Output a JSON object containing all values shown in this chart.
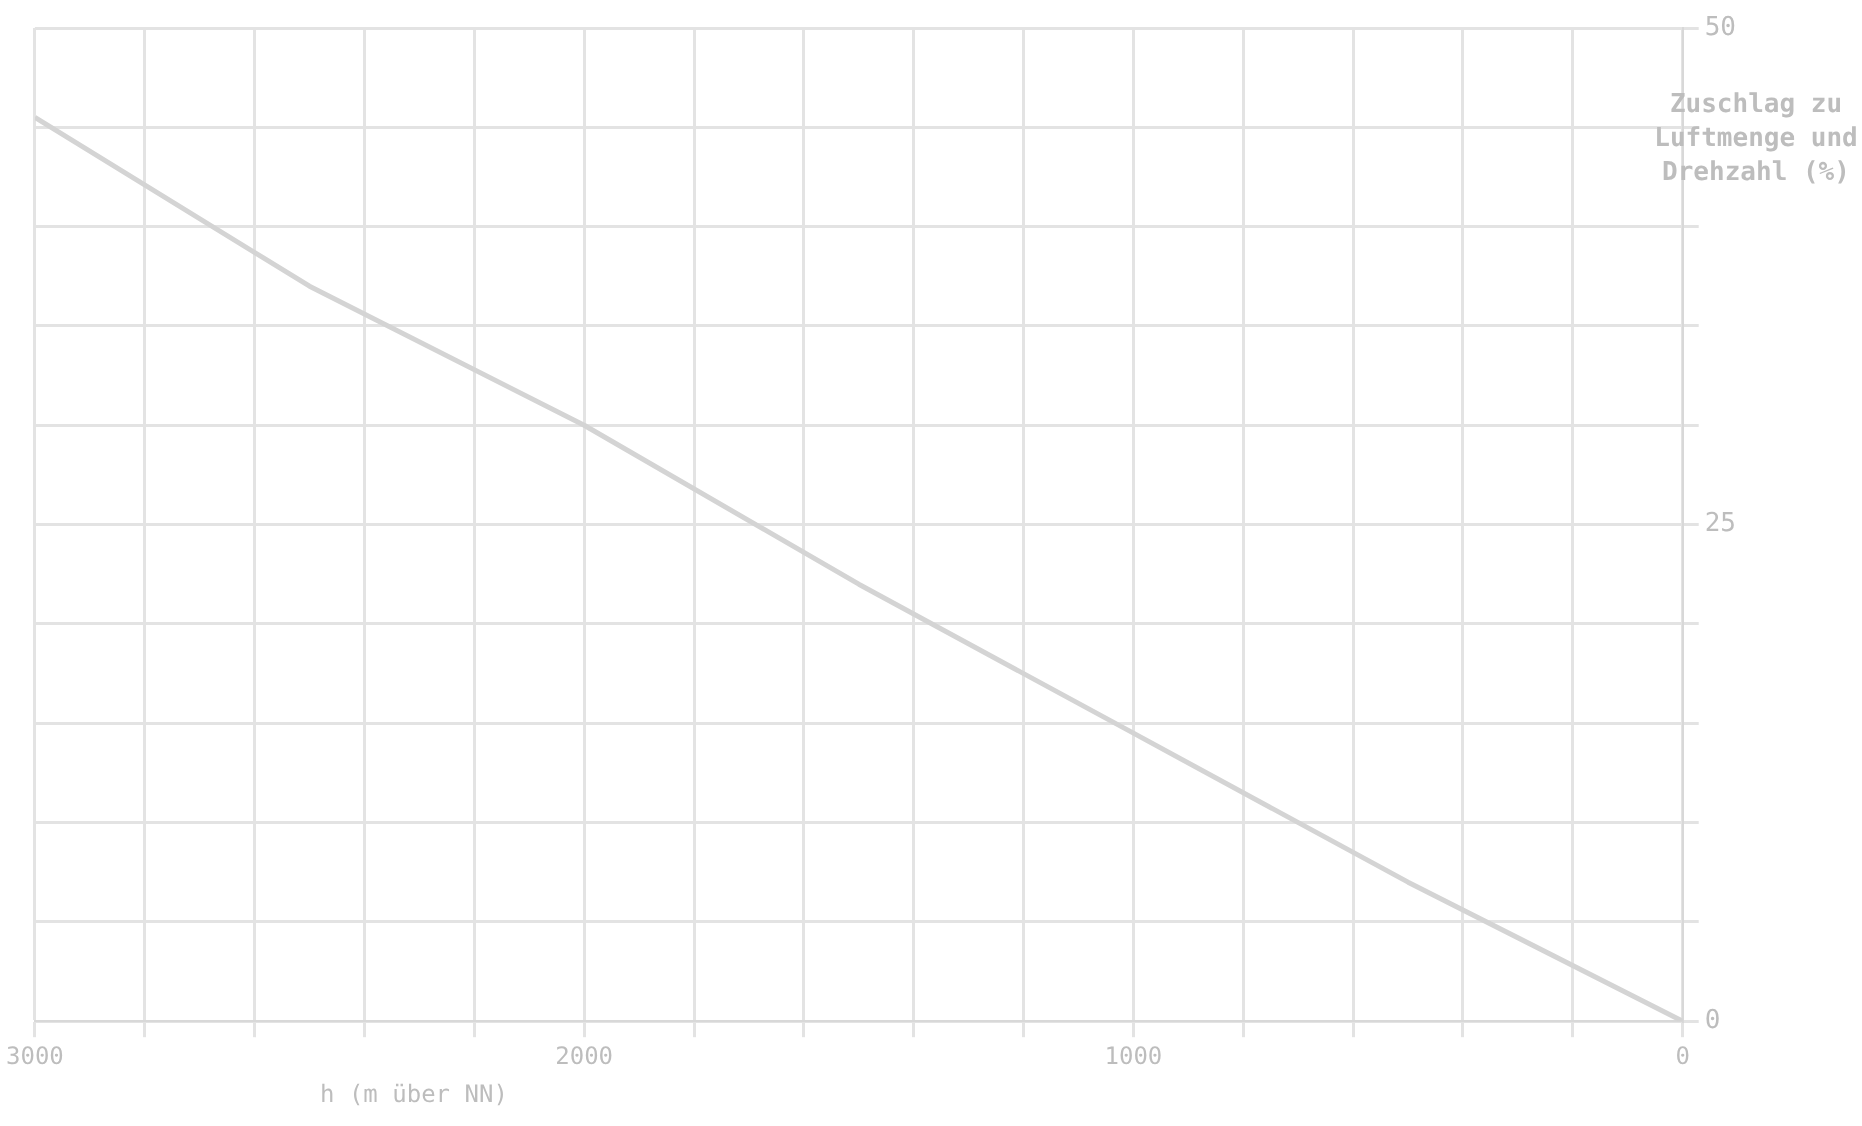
{
  "chart_data": {
    "type": "line",
    "xlabel": "h (m über NN)",
    "ylabel": "Zuschlag zu Luftmenge und Drehzahl (%)",
    "x": [
      0,
      500,
      1000,
      1500,
      2000,
      2500,
      3000
    ],
    "series": [
      {
        "color": "#d4d4d4",
        "values": [
          0,
          7,
          14.5,
          22,
          30,
          37,
          45.5
        ]
      }
    ],
    "xlim": [
      3000,
      0
    ],
    "xticks": [
      {
        "value": 3000,
        "label": "3000"
      },
      {
        "value": 2800,
        "label": null
      },
      {
        "value": 2600,
        "label": null
      },
      {
        "value": 2400,
        "label": null
      },
      {
        "value": 2200,
        "label": null
      },
      {
        "value": 2000,
        "label": "2000"
      },
      {
        "value": 1800,
        "label": null
      },
      {
        "value": 1600,
        "label": null
      },
      {
        "value": 1400,
        "label": null
      },
      {
        "value": 1200,
        "label": null
      },
      {
        "value": 1000,
        "label": "1000"
      },
      {
        "value": 800,
        "label": null
      },
      {
        "value": 600,
        "label": null
      },
      {
        "value": 400,
        "label": null
      },
      {
        "value": 200,
        "label": null
      },
      {
        "value": 0,
        "label": "0"
      }
    ],
    "ylim": [
      0,
      50
    ],
    "yticks": [
      {
        "value": 0,
        "label": "0"
      },
      {
        "value": 5,
        "label": null
      },
      {
        "value": 10,
        "label": null
      },
      {
        "value": 15,
        "label": null
      },
      {
        "value": 20,
        "label": null
      },
      {
        "value": 25,
        "label": "25"
      },
      {
        "value": 30,
        "label": null
      },
      {
        "value": 35,
        "label": null
      },
      {
        "value": 40,
        "label": null
      },
      {
        "value": 45,
        "label": null
      },
      {
        "value": 50,
        "label": "50"
      }
    ],
    "grid": true,
    "marker": "none",
    "line_style": "solid"
  }
}
